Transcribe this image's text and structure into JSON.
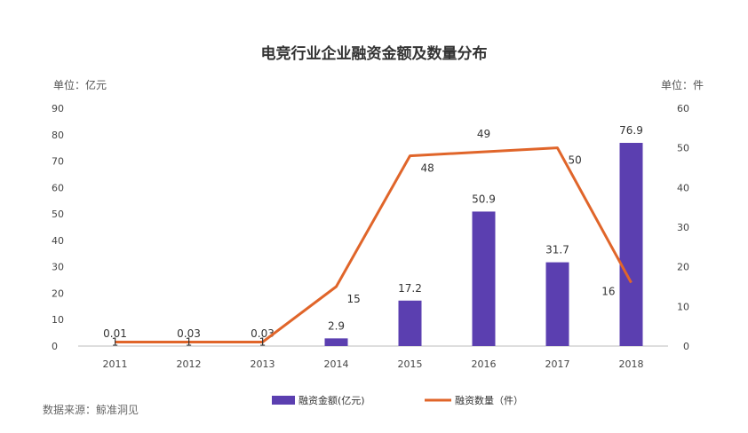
{
  "chart_data": {
    "type": "bar",
    "title": "电竞行业企业融资金额及数量分布",
    "left_unit": "单位：亿元",
    "right_unit": "单位：件",
    "categories": [
      "2011",
      "2012",
      "2013",
      "2014",
      "2015",
      "2016",
      "2017",
      "2018"
    ],
    "y_left_ticks": [
      "0",
      "10",
      "20",
      "30",
      "40",
      "50",
      "60",
      "70",
      "80",
      "90"
    ],
    "y_right_ticks": [
      "0",
      "10",
      "20",
      "30",
      "40",
      "50",
      "60"
    ],
    "ylim_left": [
      0,
      90
    ],
    "ylim_right": [
      0,
      60
    ],
    "series": [
      {
        "name": "融资金额(亿元)",
        "type": "bar",
        "axis": "left",
        "color": "#5b3fb0",
        "values": [
          0.01,
          0.03,
          0.03,
          2.9,
          17.2,
          50.9,
          31.7,
          76.9
        ],
        "labels": [
          "0.01",
          "0.03",
          "0.03",
          "2.9",
          "17.2",
          "50.9",
          "31.7",
          "76.9"
        ]
      },
      {
        "name": "融资数量（件）",
        "type": "line",
        "axis": "right",
        "color": "#e0652a",
        "values": [
          1,
          1,
          1,
          15,
          48,
          49,
          50,
          16
        ],
        "labels": [
          "1",
          "1",
          "1",
          "15",
          "48",
          "49",
          "50",
          "16"
        ]
      }
    ],
    "legend_position": "bottom-center",
    "grid": false
  },
  "source": "数据来源：鲸准洞见"
}
